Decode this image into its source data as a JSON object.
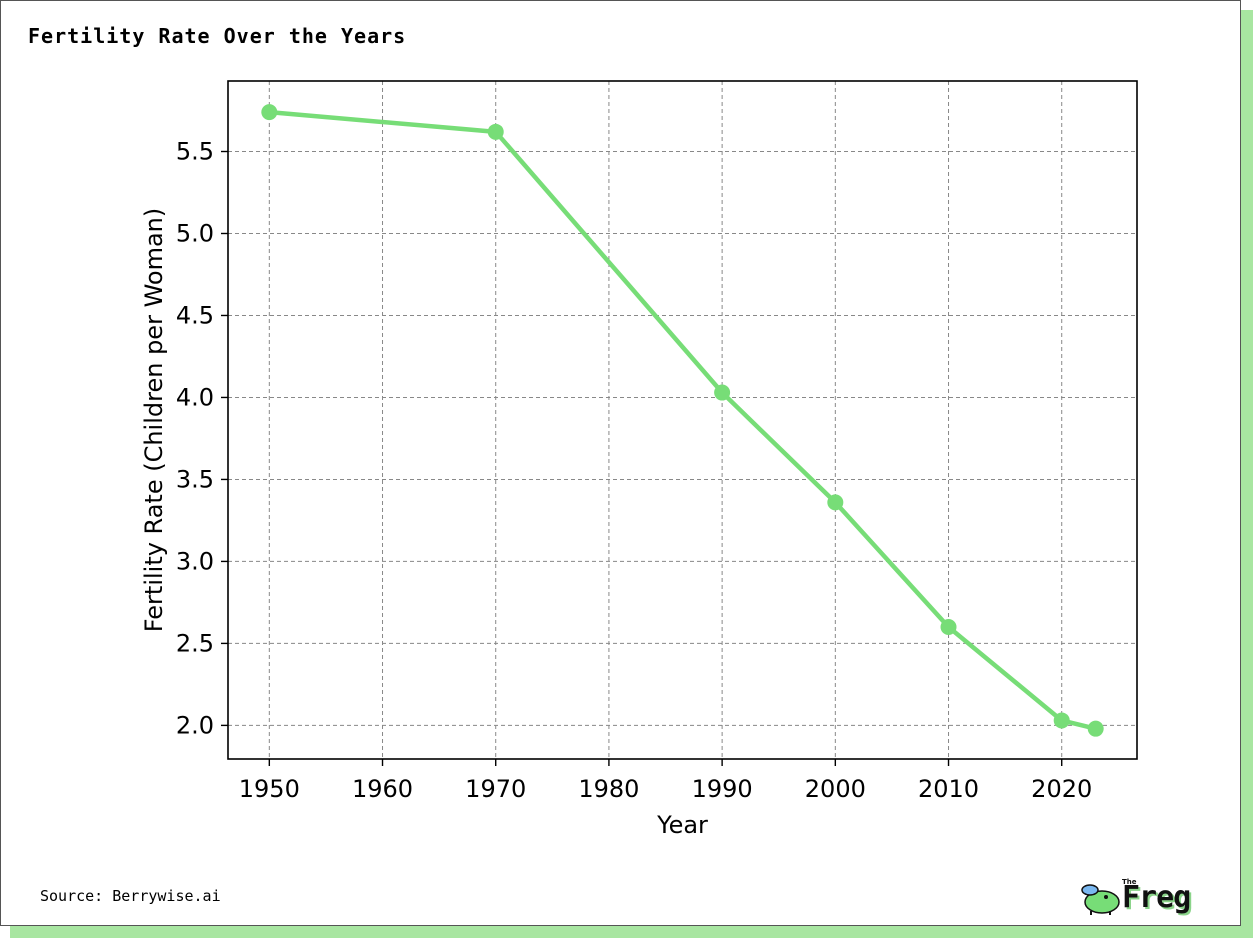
{
  "header": {
    "title": "Fertility Rate Over the Years"
  },
  "footer": {
    "source": "Source: Berrywise.ai",
    "brand_small": "The",
    "brand_word": "Freg"
  },
  "colors": {
    "line": "#77dd77",
    "grid": "#888888",
    "shadow": "#a8e6a1"
  },
  "chart_data": {
    "type": "line",
    "xlabel": "Year",
    "ylabel": "Fertility Rate (Children per Woman)",
    "x": [
      1950,
      1970,
      1990,
      2000,
      2010,
      2020,
      2023
    ],
    "series": [
      {
        "values": [
          5.74,
          5.62,
          4.03,
          3.36,
          2.6,
          2.03,
          1.98
        ]
      }
    ],
    "xlim": [
      1946.35,
      2026.65
    ],
    "ylim": [
      1.795,
      5.93
    ],
    "xticks": [
      1950,
      1960,
      1970,
      1980,
      1990,
      2000,
      2010,
      2020
    ],
    "yticks": [
      2.0,
      2.5,
      3.0,
      3.5,
      4.0,
      4.5,
      5.0,
      5.5
    ],
    "ytick_labels": [
      "2.0",
      "2.5",
      "3.0",
      "3.5",
      "4.0",
      "4.5",
      "5.0",
      "5.5"
    ],
    "grid": true,
    "grid_style": "dashed",
    "markers": true
  }
}
